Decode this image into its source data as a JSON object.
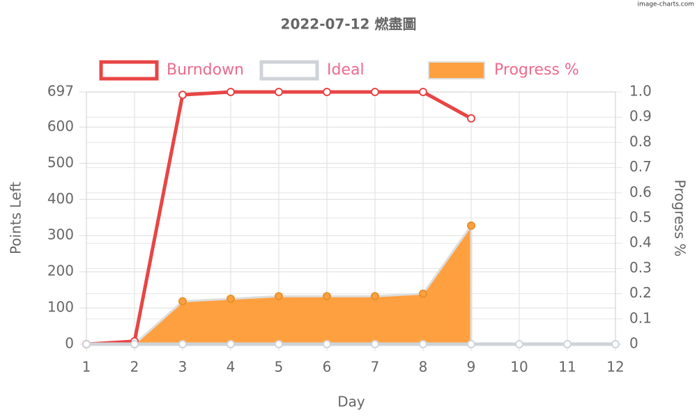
{
  "chart_data": {
    "type": "line",
    "title": "2022-07-12 燃盡圖",
    "watermark": "image-charts.com",
    "x_label": "Day",
    "y_label": "Points Left",
    "y2_label": "Progress %",
    "x": [
      1,
      2,
      3,
      4,
      5,
      6,
      7,
      8,
      9,
      10,
      11,
      12
    ],
    "xlim": [
      1,
      12
    ],
    "xticks": [
      1,
      2,
      3,
      4,
      5,
      6,
      7,
      8,
      9,
      10,
      11,
      12
    ],
    "ylim": [
      0,
      697
    ],
    "yticks": [
      0,
      100,
      200,
      300,
      400,
      500,
      600,
      697
    ],
    "y2lim": [
      0,
      1
    ],
    "y2ticks": [
      0,
      0.1,
      0.2,
      0.3,
      0.4,
      0.5,
      0.6,
      0.7,
      0.8,
      0.9,
      {
        "value": 1,
        "label": "1.0"
      }
    ],
    "grid": true,
    "legend": "top",
    "series": [
      {
        "name": "Burndown",
        "color": "#e84545",
        "values": [
          0,
          8,
          689,
          697,
          697,
          697,
          697,
          697,
          624,
          null,
          null,
          null
        ]
      },
      {
        "name": "Ideal",
        "color": "#cfd3d8",
        "values": [
          0,
          0,
          0,
          0,
          0,
          0,
          0,
          0,
          0,
          0,
          0,
          0
        ]
      },
      {
        "name": "Progress %",
        "color": "#ffa040",
        "axis": "y2",
        "area": true,
        "values": [
          0,
          0,
          0.17,
          0.18,
          0.19,
          0.19,
          0.19,
          0.2,
          0.47,
          null,
          null,
          null
        ]
      }
    ]
  }
}
